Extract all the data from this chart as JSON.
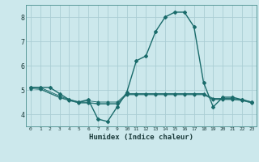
{
  "bg_color": "#cce8ec",
  "grid_color": "#aacdd4",
  "line_color": "#1a6b6b",
  "marker_color": "#1a6b6b",
  "xlabel": "Humidex (Indice chaleur)",
  "xlim": [
    -0.5,
    23.5
  ],
  "ylim": [
    3.5,
    8.5
  ],
  "yticks": [
    4,
    5,
    6,
    7,
    8
  ],
  "xticks": [
    0,
    1,
    2,
    3,
    4,
    5,
    6,
    7,
    8,
    9,
    10,
    11,
    12,
    13,
    14,
    15,
    16,
    17,
    18,
    19,
    20,
    21,
    22,
    23
  ],
  "series": [
    [
      5.1,
      5.1,
      5.1,
      4.85,
      4.6,
      4.5,
      4.6,
      3.8,
      3.7,
      4.3,
      4.9,
      6.2,
      6.4,
      7.4,
      8.0,
      8.2,
      8.2,
      7.6,
      5.3,
      4.3,
      4.7,
      4.7,
      4.6,
      4.5
    ],
    [
      5.1,
      5.1,
      null,
      4.75,
      4.6,
      4.5,
      4.55,
      4.5,
      4.5,
      4.5,
      4.85,
      4.85,
      4.85,
      4.85,
      4.85,
      4.85,
      4.85,
      4.85,
      4.85,
      4.65,
      4.65,
      4.65,
      4.6,
      4.5
    ],
    [
      5.1,
      5.05,
      null,
      4.7,
      4.58,
      4.48,
      4.48,
      4.44,
      4.44,
      4.44,
      4.82,
      4.82,
      4.82,
      4.82,
      4.82,
      4.82,
      4.82,
      4.82,
      4.82,
      4.62,
      4.62,
      4.62,
      4.58,
      4.48
    ],
    [
      5.05,
      5.02,
      null,
      4.68,
      4.56,
      4.46,
      4.46,
      4.42,
      4.42,
      4.42,
      4.8,
      4.8,
      4.8,
      4.8,
      4.8,
      4.8,
      4.8,
      4.8,
      4.8,
      4.6,
      4.6,
      4.6,
      4.56,
      4.46
    ]
  ],
  "figsize": [
    3.2,
    2.0
  ],
  "dpi": 100
}
